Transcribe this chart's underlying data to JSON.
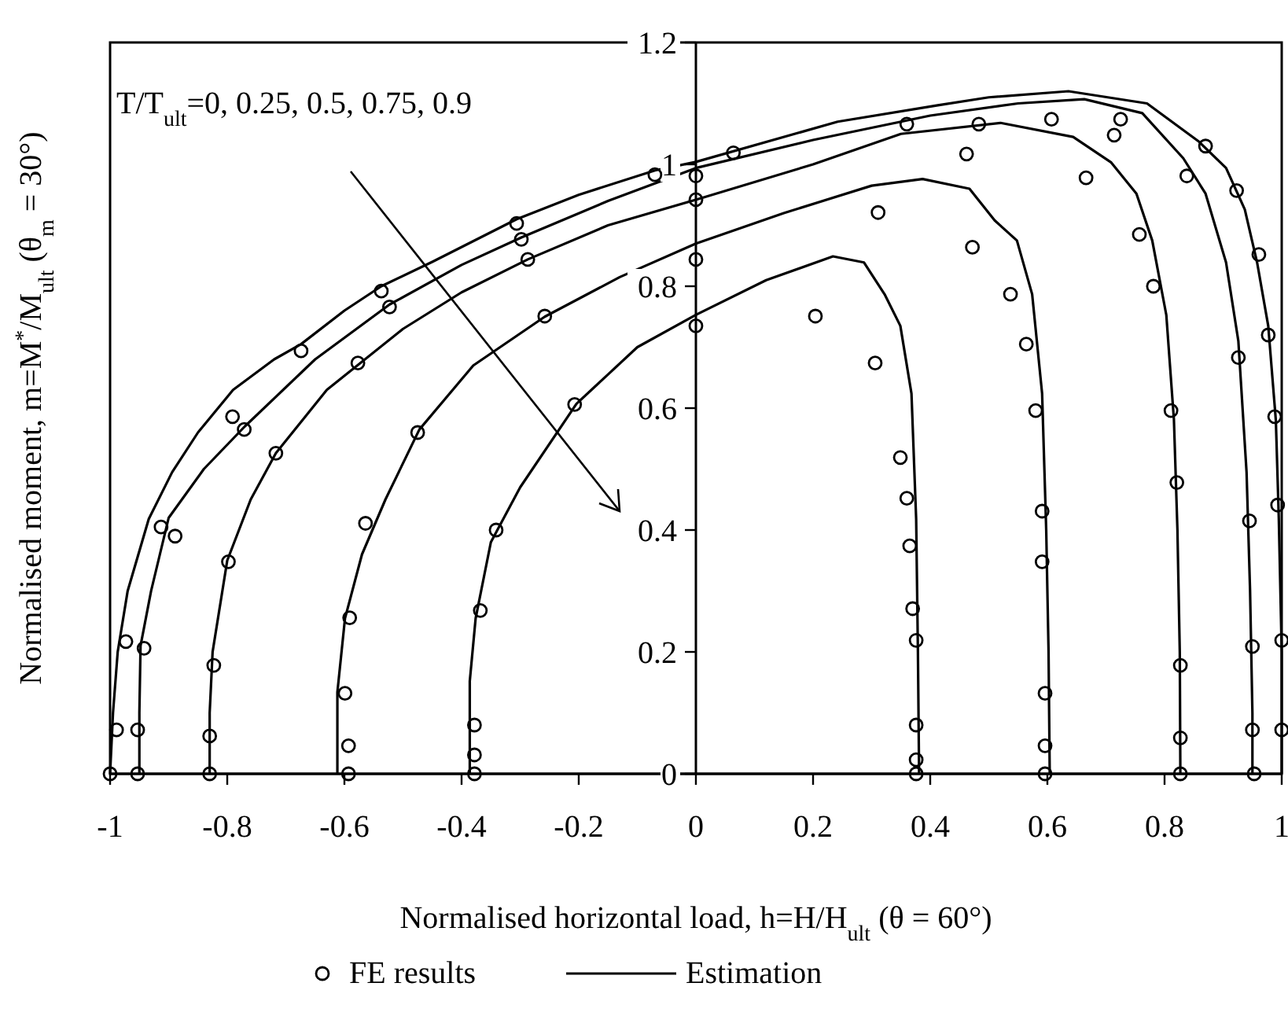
{
  "chart_data": {
    "type": "line",
    "xlabel": "Normalised horizontal load, h=H/H$_{ult}$ (θ = 60°)",
    "ylabel": "Normalised moment, m=M$^{*}$/M$_{ult}$ (θ$_{m}$ = 30°)",
    "annotations": [
      "T/T$_{ult}$=0, 0.25, 0.5, 0.75, 0.9"
    ],
    "xlim": [
      -1,
      1
    ],
    "ylim": [
      0,
      1.2
    ],
    "xticks": [
      -1,
      -0.8,
      -0.6,
      -0.4,
      -0.2,
      0,
      0.2,
      0.4,
      0.6,
      0.8,
      1
    ],
    "yticks": [
      0,
      0.2,
      0.4,
      0.6,
      0.8,
      1,
      1.2
    ],
    "grid": false,
    "legend": "bottom",
    "series": [
      {
        "name": "FE results",
        "type": "scatter",
        "marker": "circle",
        "color": "#000000",
        "x": [
          -1,
          -0.953,
          -0.83,
          -0.593,
          -0.378,
          0.376,
          0.596,
          0.827,
          0.953,
          1.0,
          1.0,
          0.993,
          0.988,
          0.977,
          0.961,
          0.923,
          0.87,
          0.95,
          0.95,
          0.945,
          0.926,
          0.838,
          0.725,
          0.714,
          0.827,
          0.827,
          0.821,
          0.811,
          0.781,
          0.757,
          0.666,
          0.607,
          0.483,
          0.462,
          0.596,
          0.596,
          0.591,
          0.591,
          0.58,
          0.564,
          0.537,
          0.472,
          0.36,
          0.376,
          0.376,
          0.376,
          0.37,
          0.365,
          0.36,
          0.349,
          0.306,
          0.311,
          0.204,
          0.064,
          0,
          0,
          0,
          0,
          -0.07,
          -0.306,
          -0.298,
          -0.287,
          -0.537,
          -0.523,
          -0.258,
          -0.674,
          -0.577,
          -0.207,
          -0.791,
          -0.771,
          -0.475,
          -0.717,
          -0.913,
          -0.889,
          -0.798,
          -0.564,
          -0.341,
          -0.591,
          -0.368,
          -0.973,
          -0.942,
          -0.823,
          -0.599,
          -0.378,
          -0.989,
          -0.953,
          -0.83,
          -0.593,
          -0.378
        ],
        "values": [
          0,
          0,
          0,
          0,
          0,
          0,
          0,
          0,
          0,
          0.072,
          0.219,
          0.441,
          0.586,
          0.72,
          0.852,
          0.957,
          1.03,
          0.072,
          0.209,
          0.415,
          0.683,
          0.981,
          1.074,
          1.048,
          0.059,
          0.178,
          0.478,
          0.596,
          0.8,
          0.885,
          0.978,
          1.074,
          1.066,
          1.017,
          0.046,
          0.132,
          0.348,
          0.431,
          0.596,
          0.705,
          0.787,
          0.864,
          1.066,
          0.023,
          0.08,
          0.219,
          0.271,
          0.374,
          0.452,
          0.519,
          0.674,
          0.921,
          0.751,
          1.019,
          0.981,
          0.942,
          0.844,
          0.735,
          0.983,
          0.903,
          0.877,
          0.844,
          0.792,
          0.766,
          0.751,
          0.694,
          0.674,
          0.606,
          0.586,
          0.565,
          0.56,
          0.526,
          0.405,
          0.39,
          0.348,
          0.411,
          0.4,
          0.256,
          0.268,
          0.217,
          0.206,
          0.178,
          0.132,
          0.08,
          0.072,
          0.072,
          0.062,
          0.046,
          0.031
        ]
      },
      {
        "name": "Estimation",
        "line_style": "solid",
        "color": "#000000",
        "x": [
          -1,
          -0.995,
          -0.987,
          -0.97,
          -0.934,
          -0.894,
          -0.85,
          -0.79,
          -0.72,
          -0.674,
          -0.6,
          -0.537,
          -0.45,
          -0.306,
          -0.2,
          -0.07,
          0,
          0.242,
          0.413,
          0.5,
          0.636,
          0.77,
          0.859,
          0.905,
          0.937,
          0.958,
          0.977,
          0.99,
          0.995,
          1,
          1
        ],
        "values": [
          0,
          0.1,
          0.2,
          0.3,
          0.418,
          0.495,
          0.56,
          0.63,
          0.68,
          0.705,
          0.76,
          0.8,
          0.84,
          0.91,
          0.95,
          0.99,
          1.004,
          1.07,
          1.097,
          1.11,
          1.12,
          1.1,
          1.037,
          0.994,
          0.926,
          0.839,
          0.735,
          0.58,
          0.42,
          0.2,
          0
        ]
      },
      {
        "line_style": "solid",
        "color": "#000000",
        "x": [
          -0.95,
          -0.95,
          -0.948,
          -0.93,
          -0.9,
          -0.84,
          -0.77,
          -0.65,
          -0.523,
          -0.4,
          -0.298,
          -0.15,
          0,
          0.2,
          0.4,
          0.55,
          0.663,
          0.762,
          0.832,
          0.87,
          0.905,
          0.926,
          0.94,
          0.946,
          0.95,
          0.95
        ],
        "values": [
          0,
          0.1,
          0.21,
          0.3,
          0.42,
          0.5,
          0.57,
          0.68,
          0.77,
          0.835,
          0.88,
          0.94,
          0.994,
          1.04,
          1.08,
          1.1,
          1.107,
          1.084,
          1.01,
          0.952,
          0.839,
          0.71,
          0.495,
          0.3,
          0.1,
          0
        ]
      },
      {
        "line_style": "solid",
        "color": "#000000",
        "x": [
          -0.83,
          -0.83,
          -0.825,
          -0.8,
          -0.76,
          -0.717,
          -0.63,
          -0.5,
          -0.4,
          -0.287,
          -0.15,
          0,
          0.2,
          0.35,
          0.52,
          0.644,
          0.709,
          0.752,
          0.779,
          0.803,
          0.816,
          0.822,
          0.826,
          0.827
        ],
        "values": [
          0,
          0.1,
          0.2,
          0.35,
          0.45,
          0.526,
          0.63,
          0.73,
          0.79,
          0.844,
          0.9,
          0.942,
          1.0,
          1.05,
          1.068,
          1.045,
          1.003,
          0.952,
          0.875,
          0.753,
          0.581,
          0.4,
          0.2,
          0
        ]
      },
      {
        "line_style": "solid",
        "color": "#000000",
        "x": [
          -0.612,
          -0.612,
          -0.599,
          -0.57,
          -0.53,
          -0.472,
          -0.38,
          -0.258,
          -0.13,
          0,
          0.15,
          0.3,
          0.387,
          0.467,
          0.51,
          0.548,
          0.574,
          0.591,
          0.598,
          0.602,
          0.604
        ],
        "values": [
          0,
          0.134,
          0.255,
          0.36,
          0.45,
          0.565,
          0.67,
          0.75,
          0.815,
          0.87,
          0.92,
          0.965,
          0.976,
          0.96,
          0.908,
          0.875,
          0.787,
          0.624,
          0.4,
          0.2,
          0
        ]
      },
      {
        "line_style": "solid",
        "color": "#000000",
        "x": [
          -0.386,
          -0.386,
          -0.376,
          -0.35,
          -0.3,
          -0.204,
          -0.1,
          0,
          0.12,
          0.234,
          0.287,
          0.322,
          0.349,
          0.368,
          0.376,
          0.379,
          0.381
        ],
        "values": [
          0,
          0.152,
          0.255,
          0.38,
          0.47,
          0.607,
          0.7,
          0.753,
          0.81,
          0.849,
          0.839,
          0.787,
          0.735,
          0.624,
          0.418,
          0.2,
          0
        ]
      }
    ]
  }
}
